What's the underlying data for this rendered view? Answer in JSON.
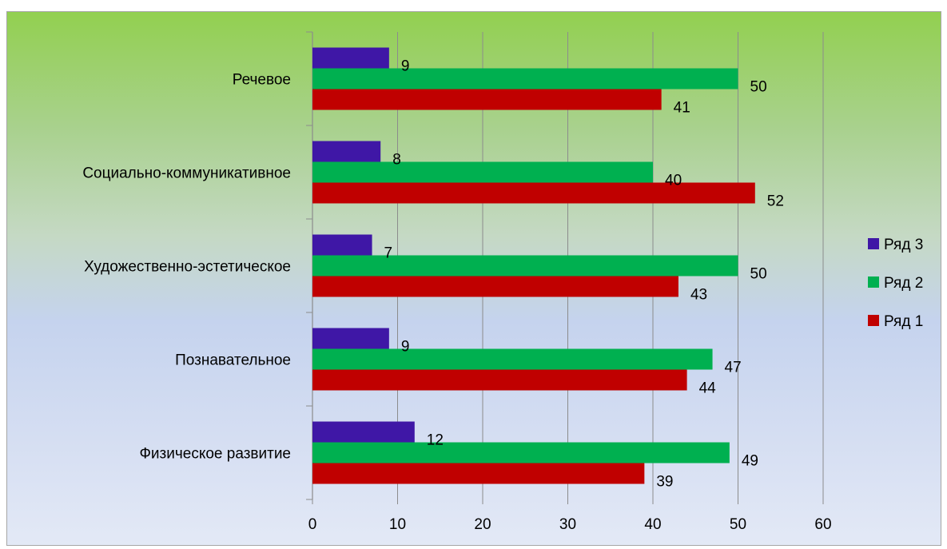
{
  "chart_data": {
    "type": "bar",
    "orientation": "horizontal",
    "categories": [
      "Физическое развитие",
      "Познавательное",
      "Художественно-эстетическое",
      "Социально-коммуникативное",
      "Речевое"
    ],
    "series": [
      {
        "name": "Ряд 1",
        "color": "#c00000",
        "values": [
          39,
          44,
          43,
          52,
          41
        ]
      },
      {
        "name": "Ряд 2",
        "color": "#00b050",
        "values": [
          49,
          47,
          50,
          40,
          50
        ]
      },
      {
        "name": "Ряд 3",
        "color": "#3f17a6",
        "values": [
          12,
          9,
          7,
          8,
          9
        ]
      }
    ],
    "xlim": [
      0,
      60
    ],
    "xticks": [
      0,
      10,
      20,
      30,
      40,
      50,
      60
    ],
    "tick_labels": [
      "0",
      "10",
      "20",
      "30",
      "40",
      "50",
      "60"
    ],
    "grid": true,
    "data_labels": true,
    "legend_position": "right",
    "legend_order": [
      "Ряд 3",
      "Ряд 2",
      "Ряд 1"
    ]
  }
}
